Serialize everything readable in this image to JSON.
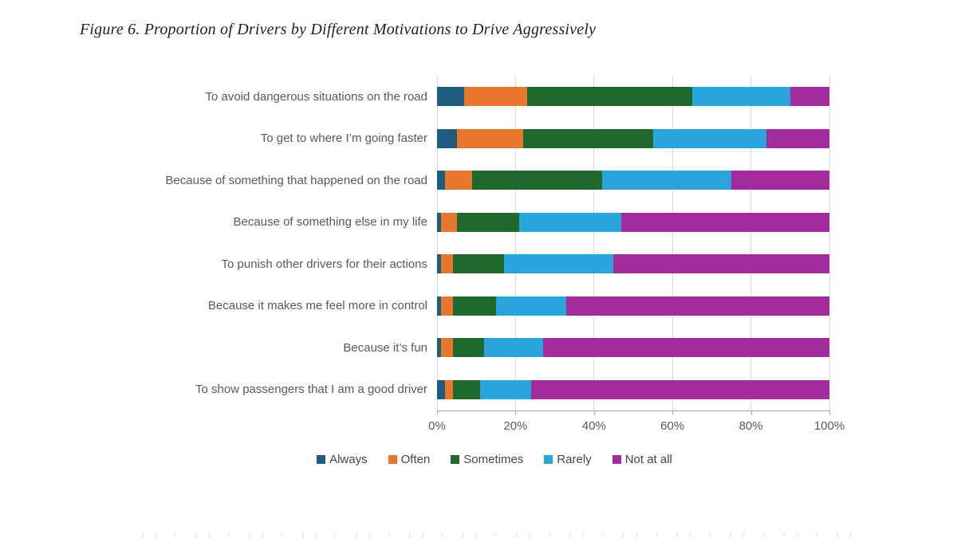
{
  "figure": {
    "title": "Figure 6. Proportion of Drivers by Different Motivations to Drive Aggressively"
  },
  "chart_data": {
    "type": "bar",
    "variant": "horizontal-stacked",
    "title": "Figure 6. Proportion of Drivers by Different Motivations to Drive Aggressively",
    "categories": [
      "To avoid dangerous situations on the road",
      "To get to where I’m going faster",
      "Because of something that happened on the road",
      "Because of something else in my life",
      "To punish other drivers for their actions",
      "Because it makes me feel more in control",
      "Because it’s fun",
      "To show passengers that I am a good driver"
    ],
    "series": [
      {
        "name": "Always",
        "color": "#1f5c7d",
        "values": [
          7,
          5,
          2,
          1,
          1,
          1,
          1,
          2
        ]
      },
      {
        "name": "Often",
        "color": "#e8762c",
        "values": [
          16,
          17,
          7,
          4,
          3,
          3,
          3,
          2
        ]
      },
      {
        "name": "Sometimes",
        "color": "#20692c",
        "values": [
          42,
          33,
          33,
          16,
          13,
          11,
          8,
          7
        ]
      },
      {
        "name": "Rarely",
        "color": "#29a4dd",
        "values": [
          25,
          29,
          33,
          26,
          28,
          18,
          15,
          13
        ]
      },
      {
        "name": "Not at all",
        "color": "#a22c9c",
        "values": [
          10,
          16,
          25,
          53,
          55,
          67,
          73,
          76
        ]
      }
    ],
    "x_ticks": [
      "0%",
      "20%",
      "40%",
      "60%",
      "80%",
      "100%"
    ],
    "xlim": [
      0,
      100
    ],
    "grid": "vertical",
    "legend_position": "bottom",
    "colors": {
      "grid_line": "#d9d9d9",
      "axis_line": "#a6a6a6",
      "label_text": "#595959",
      "title_text": "#1f1f1f"
    }
  }
}
